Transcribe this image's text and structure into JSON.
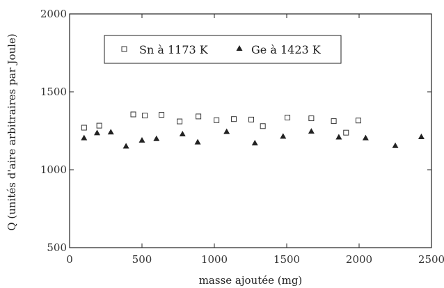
{
  "chart_data": {
    "type": "scatter",
    "title": "",
    "xlabel": "masse ajoutée (mg)",
    "ylabel": "Q (unités d'aire arbitraires par Joule)",
    "xlim": [
      0,
      2500
    ],
    "ylim": [
      500,
      2000
    ],
    "xticks": [
      0,
      500,
      1000,
      1500,
      2000,
      2500
    ],
    "yticks": [
      500,
      1000,
      1500,
      2000
    ],
    "grid": false,
    "legend_position": "top-center",
    "series": [
      {
        "name": "Sn à 1173 K",
        "marker": "open-square",
        "color": "#333333",
        "points": [
          {
            "x": 100,
            "y": 1270
          },
          {
            "x": 205,
            "y": 1283
          },
          {
            "x": 440,
            "y": 1355
          },
          {
            "x": 520,
            "y": 1348
          },
          {
            "x": 635,
            "y": 1352
          },
          {
            "x": 760,
            "y": 1310
          },
          {
            "x": 890,
            "y": 1342
          },
          {
            "x": 1015,
            "y": 1318
          },
          {
            "x": 1135,
            "y": 1325
          },
          {
            "x": 1255,
            "y": 1322
          },
          {
            "x": 1335,
            "y": 1280
          },
          {
            "x": 1505,
            "y": 1335
          },
          {
            "x": 1670,
            "y": 1330
          },
          {
            "x": 1825,
            "y": 1312
          },
          {
            "x": 1910,
            "y": 1238
          },
          {
            "x": 1995,
            "y": 1316
          }
        ]
      },
      {
        "name": "Ge à 1423 K",
        "marker": "filled-triangle",
        "color": "#222222",
        "points": [
          {
            "x": 100,
            "y": 1205
          },
          {
            "x": 190,
            "y": 1237
          },
          {
            "x": 285,
            "y": 1242
          },
          {
            "x": 390,
            "y": 1152
          },
          {
            "x": 500,
            "y": 1190
          },
          {
            "x": 600,
            "y": 1200
          },
          {
            "x": 780,
            "y": 1230
          },
          {
            "x": 885,
            "y": 1178
          },
          {
            "x": 1085,
            "y": 1245
          },
          {
            "x": 1280,
            "y": 1172
          },
          {
            "x": 1475,
            "y": 1215
          },
          {
            "x": 1670,
            "y": 1247
          },
          {
            "x": 1860,
            "y": 1210
          },
          {
            "x": 2045,
            "y": 1205
          },
          {
            "x": 2250,
            "y": 1155
          },
          {
            "x": 2430,
            "y": 1212
          }
        ]
      }
    ]
  }
}
